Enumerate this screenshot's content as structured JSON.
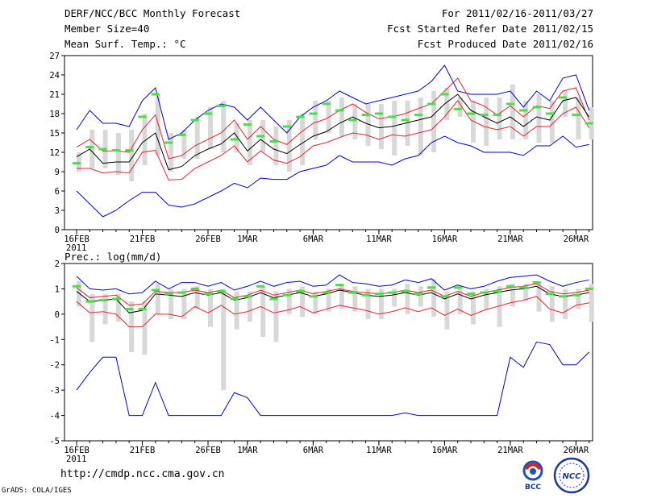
{
  "header": {
    "title": "DERF/NCC/BCC Monthly Forecast",
    "member": "Member Size=40",
    "variable": "Mean Surf. Temp.: °C",
    "period": "For 2011/02/16-2011/03/27",
    "refer": "Fcst Started Refer Date 2011/02/15",
    "produced": "Fcst Produced Date 2011/02/16"
  },
  "footer": {
    "url": "http://cmdp.ncc.cma.gov.cn",
    "credit": "GrADS: COLA/IGES",
    "logo_left": "BCC",
    "logo_right": "NCC"
  },
  "colors": {
    "mean": "#000000",
    "sd": "#e8202a",
    "extreme": "#0000d8",
    "bar": "#d8d8d8",
    "obs": "#44e044"
  },
  "chart_data": [
    {
      "type": "line",
      "title": "Mean Surf. Temp.: °C",
      "ylim": [
        0,
        27
      ],
      "yticks": [
        "0",
        "3",
        "6",
        "9",
        "12",
        "15",
        "18",
        "21",
        "24",
        "27"
      ],
      "xtick_labels": [
        "16FEB",
        "21FEB",
        "26FEB",
        "1MAR",
        "6MAR",
        "11MAR",
        "16MAR",
        "21MAR",
        "26MAR"
      ],
      "xtick_days": [
        1,
        6,
        11,
        14,
        19,
        24,
        29,
        34,
        39
      ],
      "year_label": "2011",
      "days": 40,
      "series": [
        {
          "name": "ensemble mean",
          "values": [
            11.3,
            12.5,
            10.3,
            10.5,
            10.5,
            13.5,
            15.0,
            9.3,
            9.8,
            11.5,
            12.5,
            13.3,
            15.0,
            12.2,
            14.0,
            12.5,
            11.8,
            13.2,
            14.5,
            15.2,
            16.5,
            17.5,
            16.5,
            15.8,
            16.0,
            16.5,
            17.0,
            17.5,
            19.5,
            21.0,
            18.5,
            17.5,
            16.5,
            17.5,
            16.0,
            17.5,
            17.0,
            20.0,
            20.5,
            17.5
          ]
        },
        {
          "name": "mean+sd",
          "values": [
            12.8,
            14.0,
            12.2,
            12.2,
            12.0,
            15.5,
            17.8,
            11.0,
            11.5,
            13.0,
            14.0,
            15.0,
            17.0,
            14.0,
            16.0,
            14.0,
            13.2,
            15.0,
            16.5,
            17.2,
            18.5,
            19.5,
            18.2,
            17.2,
            17.5,
            18.0,
            18.8,
            19.5,
            21.5,
            23.5,
            20.0,
            19.2,
            17.8,
            19.2,
            17.5,
            19.2,
            18.8,
            21.5,
            22.0,
            17.0
          ]
        },
        {
          "name": "mean-sd",
          "values": [
            9.5,
            9.5,
            8.8,
            9.0,
            8.8,
            12.0,
            12.3,
            7.7,
            7.8,
            9.5,
            10.5,
            11.5,
            13.0,
            10.5,
            12.2,
            10.8,
            10.3,
            11.3,
            13.0,
            13.5,
            14.3,
            15.0,
            14.7,
            14.0,
            14.7,
            14.5,
            15.0,
            15.5,
            17.5,
            20.0,
            17.0,
            16.0,
            15.5,
            16.0,
            14.5,
            16.0,
            16.0,
            18.0,
            19.0,
            15.8
          ]
        },
        {
          "name": "ensemble max",
          "values": [
            15.5,
            18.5,
            16.5,
            16.5,
            16.0,
            20.0,
            22.0,
            14.0,
            15.0,
            17.0,
            18.5,
            19.5,
            19.0,
            17.0,
            19.0,
            17.0,
            15.0,
            17.5,
            19.0,
            20.0,
            21.5,
            20.5,
            19.5,
            20.0,
            20.5,
            21.0,
            21.5,
            23.0,
            25.5,
            21.5,
            21.0,
            21.0,
            21.0,
            21.5,
            19.0,
            21.5,
            20.0,
            23.5,
            24.0,
            18.5
          ]
        },
        {
          "name": "ensemble min",
          "values": [
            6.0,
            4.0,
            2.0,
            3.0,
            4.5,
            5.8,
            5.8,
            3.8,
            3.5,
            4.0,
            5.0,
            6.0,
            7.2,
            6.5,
            8.0,
            7.8,
            7.8,
            9.0,
            9.5,
            10.0,
            11.5,
            10.5,
            10.5,
            10.5,
            10.0,
            11.0,
            11.5,
            13.5,
            14.5,
            13.5,
            13.0,
            12.0,
            12.0,
            12.0,
            11.5,
            13.0,
            13.0,
            14.5,
            12.8,
            13.2
          ]
        },
        {
          "name": "obs",
          "values": [
            10.3,
            12.8,
            12.5,
            12.3,
            12.3,
            17.5,
            21.0,
            13.5,
            14.7,
            17.0,
            18.0,
            19.2,
            14.0,
            16.3,
            14.5,
            13.7,
            16.0,
            17.5,
            18.0,
            19.5,
            18.5,
            17.0,
            17.8,
            18.0,
            17.5,
            17.0,
            17.8,
            19.5,
            21.0,
            18.7,
            18.0,
            17.8,
            17.8,
            19.5,
            18.5,
            19.0,
            18.0,
            20.5,
            17.8,
            16.5
          ]
        },
        {
          "name": "range low",
          "values": [
            9.0,
            9.5,
            9.5,
            8.5,
            7.5,
            10.0,
            11.5,
            9.0,
            11.0,
            11.0,
            12.5,
            12.0,
            12.0,
            10.0,
            12.0,
            10.0,
            9.0,
            10.0,
            14.0,
            15.0,
            14.5,
            14.0,
            13.0,
            12.5,
            11.5,
            13.0,
            11.5,
            12.0,
            17.0,
            17.5,
            13.5,
            13.0,
            14.0,
            14.0,
            14.0,
            13.5,
            13.5,
            17.5,
            14.0,
            14.0
          ]
        },
        {
          "name": "range high",
          "values": [
            12.0,
            15.5,
            15.5,
            15.0,
            15.5,
            18.0,
            21.0,
            15.0,
            15.5,
            17.5,
            19.0,
            20.0,
            16.5,
            17.0,
            17.0,
            16.0,
            17.0,
            18.0,
            20.0,
            20.0,
            20.5,
            19.5,
            19.5,
            19.5,
            20.0,
            20.0,
            20.5,
            21.5,
            22.0,
            20.5,
            20.0,
            20.5,
            20.5,
            22.5,
            20.0,
            21.0,
            20.0,
            21.5,
            20.5,
            19.0
          ]
        }
      ]
    },
    {
      "type": "line",
      "title": "Prec.: log(mm/d)",
      "ylim": [
        -5,
        2
      ],
      "yticks": [
        "-5",
        "-4",
        "-3",
        "-2",
        "-1",
        "0",
        "1",
        "2"
      ],
      "xtick_labels": [
        "16FEB",
        "21FEB",
        "26FEB",
        "1MAR",
        "6MAR",
        "11MAR",
        "16MAR",
        "21MAR",
        "26MAR"
      ],
      "xtick_days": [
        1,
        6,
        11,
        14,
        19,
        24,
        29,
        34,
        39
      ],
      "year_label": "2011",
      "days": 40,
      "series": [
        {
          "name": "ensemble mean",
          "values": [
            0.9,
            0.5,
            0.55,
            0.6,
            0.05,
            0.15,
            0.8,
            0.75,
            0.7,
            0.85,
            0.75,
            0.85,
            0.55,
            0.65,
            0.85,
            0.65,
            0.75,
            0.85,
            0.7,
            0.8,
            0.95,
            0.85,
            0.75,
            0.7,
            0.75,
            0.85,
            0.75,
            0.85,
            0.6,
            0.8,
            0.6,
            0.75,
            0.85,
            0.95,
            1.0,
            1.1,
            0.8,
            0.7,
            0.75,
            0.85
          ]
        },
        {
          "name": "mean+sd",
          "values": [
            1.05,
            0.65,
            0.7,
            0.75,
            0.35,
            0.4,
            0.9,
            0.85,
            0.85,
            0.95,
            0.85,
            0.95,
            0.65,
            0.75,
            0.95,
            0.75,
            0.85,
            0.95,
            0.8,
            0.9,
            1.0,
            0.9,
            0.85,
            0.8,
            0.85,
            0.95,
            0.85,
            0.95,
            0.7,
            0.9,
            0.7,
            0.85,
            0.95,
            1.05,
            1.1,
            1.2,
            0.9,
            0.8,
            0.85,
            0.95
          ]
        },
        {
          "name": "mean-sd",
          "values": [
            0.5,
            0.05,
            0.1,
            0.0,
            -0.5,
            -0.5,
            0.0,
            0.0,
            -0.1,
            0.3,
            0.05,
            0.35,
            0.0,
            0.1,
            0.3,
            0.05,
            0.15,
            0.3,
            0.05,
            0.2,
            0.35,
            0.25,
            0.15,
            0.0,
            0.1,
            0.25,
            0.1,
            0.25,
            -0.05,
            0.2,
            -0.05,
            0.15,
            0.3,
            0.45,
            0.55,
            0.7,
            0.2,
            0.05,
            0.35,
            0.45
          ]
        },
        {
          "name": "ensemble max",
          "values": [
            1.5,
            1.0,
            0.95,
            1.0,
            0.8,
            0.85,
            1.3,
            1.0,
            1.25,
            1.25,
            1.1,
            1.25,
            0.95,
            1.1,
            1.3,
            1.1,
            1.25,
            1.3,
            1.1,
            1.15,
            1.55,
            1.25,
            1.2,
            1.1,
            1.15,
            1.35,
            1.25,
            1.4,
            0.95,
            1.15,
            1.0,
            1.1,
            1.3,
            1.45,
            1.5,
            1.55,
            1.3,
            1.1,
            1.25,
            1.35
          ]
        },
        {
          "name": "ensemble min",
          "values": [
            -3.0,
            -2.3,
            -1.7,
            -1.7,
            -4.0,
            -4.0,
            -2.7,
            -4.0,
            -4.0,
            -4.0,
            -4.0,
            -4.0,
            -3.1,
            -3.3,
            -4.0,
            -4.0,
            -4.0,
            -4.0,
            -4.0,
            -4.0,
            -4.0,
            -4.0,
            -4.0,
            -4.0,
            -4.0,
            -3.9,
            -4.0,
            -4.0,
            -4.0,
            -4.0,
            -4.0,
            -4.0,
            -4.0,
            -1.7,
            -2.1,
            -1.1,
            -1.2,
            -2.0,
            -2.0,
            -1.5
          ]
        },
        {
          "name": "obs",
          "values": [
            1.1,
            0.5,
            0.55,
            0.6,
            0.2,
            0.2,
            0.95,
            0.8,
            0.85,
            1.0,
            0.8,
            0.9,
            0.6,
            0.7,
            1.1,
            0.6,
            0.75,
            0.9,
            0.7,
            0.85,
            1.15,
            0.85,
            0.75,
            0.8,
            0.85,
            0.9,
            0.8,
            1.05,
            0.7,
            1.05,
            0.8,
            0.85,
            0.9,
            1.1,
            1.05,
            1.25,
            0.8,
            0.7,
            0.75,
            1.0
          ]
        },
        {
          "name": "range low",
          "values": [
            0.3,
            -1.1,
            -0.4,
            -0.3,
            -1.5,
            -1.6,
            0.0,
            -0.2,
            -0.2,
            0.2,
            -0.5,
            -3.0,
            -0.6,
            -0.3,
            -0.9,
            -1.1,
            0.0,
            -0.1,
            0.0,
            0.1,
            0.2,
            0.1,
            -0.2,
            -0.2,
            0.3,
            0.0,
            0.3,
            -0.1,
            -0.6,
            0.0,
            -0.4,
            0.2,
            -0.5,
            0.3,
            0.5,
            0.1,
            -0.3,
            -0.2,
            0.2,
            -0.3
          ]
        },
        {
          "name": "range high",
          "values": [
            1.3,
            0.8,
            0.8,
            0.8,
            0.5,
            0.5,
            1.2,
            1.0,
            1.0,
            1.1,
            1.0,
            1.0,
            0.9,
            0.9,
            1.1,
            0.9,
            1.0,
            1.1,
            0.9,
            1.0,
            1.2,
            1.1,
            1.0,
            1.0,
            1.0,
            1.2,
            1.1,
            1.4,
            0.9,
            1.1,
            0.9,
            1.0,
            1.1,
            1.2,
            1.2,
            1.3,
            1.1,
            1.0,
            1.0,
            1.2
          ]
        }
      ]
    }
  ]
}
